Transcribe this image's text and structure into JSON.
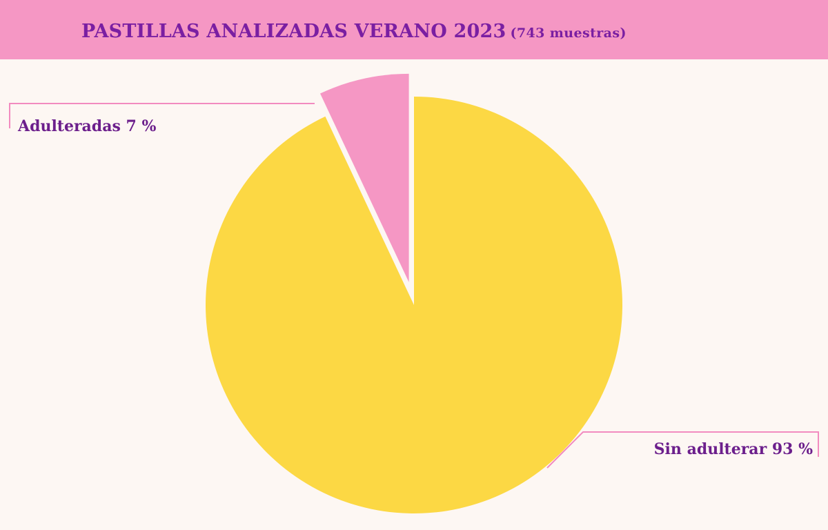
{
  "header": {
    "title": "PASTILLAS ANALIZADAS VERANO 2023",
    "subtitle": "(743 muestras)"
  },
  "colors": {
    "header_bg": "#f597c4",
    "title_text": "#7a1fa2",
    "background": "#fdf7f3",
    "slice_sin_adulterar": "#fcd844",
    "slice_adulteradas": "#f597c4",
    "leader_line": "#f28bbf"
  },
  "chart_data": {
    "type": "pie",
    "title": "PASTILLAS ANALIZADAS VERANO 2023",
    "subtitle": "(743 muestras)",
    "slices": [
      {
        "label": "Adulteradas",
        "value": 7,
        "display": "Adulteradas 7 %",
        "exploded": true,
        "color": "#f597c4"
      },
      {
        "label": "Sin adulterar",
        "value": 93,
        "display": "Sin adulterar 93 %",
        "exploded": false,
        "color": "#fcd844"
      }
    ]
  }
}
